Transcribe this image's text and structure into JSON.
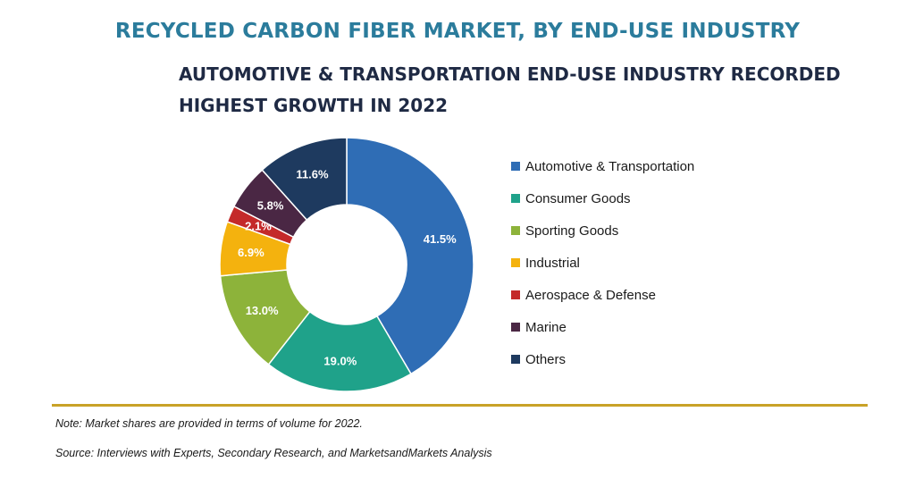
{
  "title": "RECYCLED CARBON FIBER MARKET, BY END-USE INDUSTRY",
  "subtitle": "AUTOMOTIVE & TRANSPORTATION END-USE INDUSTRY RECORDED HIGHEST GROWTH IN 2022",
  "chart_data": {
    "type": "pie",
    "donut": true,
    "legend_position": "right",
    "unit": "%",
    "slices": [
      {
        "label": "Automotive & Transportation",
        "value": 41.5,
        "value_label": "41.5%",
        "color": "#2f6db5"
      },
      {
        "label": "Consumer Goods",
        "value": 19.0,
        "value_label": "19.0%",
        "color": "#1fa28a"
      },
      {
        "label": "Sporting Goods",
        "value": 13.0,
        "value_label": "13.0%",
        "color": "#8db33a"
      },
      {
        "label": "Industrial",
        "value": 6.9,
        "value_label": "6.9%",
        "color": "#f4b20e"
      },
      {
        "label": "Aerospace & Defense",
        "value": 2.1,
        "value_label": "2.1%",
        "color": "#c42a2a"
      },
      {
        "label": "Marine",
        "value": 5.8,
        "value_label": "5.8%",
        "color": "#4a2744"
      },
      {
        "label": "Others",
        "value": 11.6,
        "value_label": "11.6%",
        "color": "#1e3a5f"
      }
    ]
  },
  "footer": {
    "note": "Note: Market shares are provided in terms of volume for 2022.",
    "source": "Source: Interviews with Experts, Secondary Research, and MarketsandMarkets Analysis"
  }
}
